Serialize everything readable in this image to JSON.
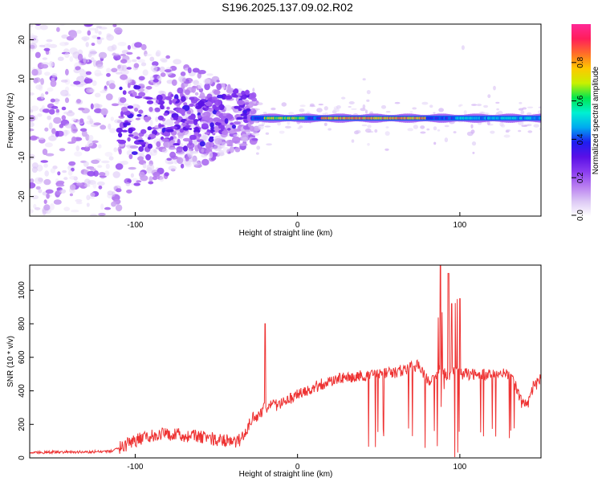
{
  "title": "S196.2025.137.09.02.R02",
  "chart_data": [
    {
      "type": "heatmap",
      "xlabel": "Height of straight line (km)",
      "ylabel": "Frequency (Hz)",
      "xlim": [
        -165,
        150
      ],
      "ylim": [
        -25,
        24
      ],
      "xticks": [
        -100,
        0,
        100
      ],
      "yticks": [
        -20,
        -10,
        0,
        10,
        20
      ],
      "grid": false,
      "colorbar": {
        "label": "Normalized spectral amplitude",
        "range": [
          0,
          1
        ],
        "ticks": [
          0.0,
          0.2,
          0.4,
          0.6,
          0.8
        ],
        "tick_labels": [
          "0.0",
          "0.2",
          "0.4",
          "0.6",
          "0.8"
        ],
        "colors": [
          "#ffffff",
          "#dcc8f5",
          "#b97ef0",
          "#8a3cf0",
          "#5a10e6",
          "#1e1ef0",
          "#00aaf0",
          "#00f0d2",
          "#00e650",
          "#c8f000",
          "#ffc800",
          "#ff6e28",
          "#ff1e5a",
          "#ff2896"
        ]
      },
      "features": {
        "carrier_line_frequency_hz": 0,
        "carrier_start_km": -30,
        "noise_region_km": [
          -165,
          -30
        ],
        "fan_envelope_hz": 15
      }
    },
    {
      "type": "line",
      "xlabel": "Height of straight line (km)",
      "ylabel": "SNR (10 * v/v)",
      "xlim": [
        -165,
        150
      ],
      "ylim": [
        0,
        1150
      ],
      "xticks": [
        -100,
        0,
        100
      ],
      "yticks": [
        0,
        200,
        400,
        600,
        800,
        1000
      ],
      "grid": false,
      "line_color": "#ee3333",
      "x": [
        -165,
        -150,
        -130,
        -115,
        -105,
        -95,
        -85,
        -75,
        -65,
        -55,
        -45,
        -38,
        -33,
        -30,
        -27,
        -24,
        -20,
        -10,
        0,
        10,
        20,
        30,
        40,
        50,
        60,
        70,
        75,
        80,
        85,
        88,
        92,
        96,
        100,
        105,
        110,
        120,
        130,
        135,
        138,
        142,
        145,
        150
      ],
      "values": [
        30,
        35,
        35,
        40,
        80,
        120,
        140,
        140,
        130,
        120,
        100,
        100,
        120,
        200,
        250,
        250,
        300,
        320,
        380,
        420,
        460,
        480,
        490,
        500,
        510,
        540,
        560,
        460,
        480,
        550,
        480,
        520,
        500,
        500,
        500,
        500,
        500,
        420,
        330,
        320,
        420,
        470
      ],
      "spikes": [
        {
          "x": -20,
          "y": 800
        },
        {
          "x": 88,
          "y": 1150
        },
        {
          "x": 93,
          "y": 1100
        },
        {
          "x": 95,
          "y": 920
        },
        {
          "x": 100,
          "y": 950
        }
      ]
    }
  ]
}
